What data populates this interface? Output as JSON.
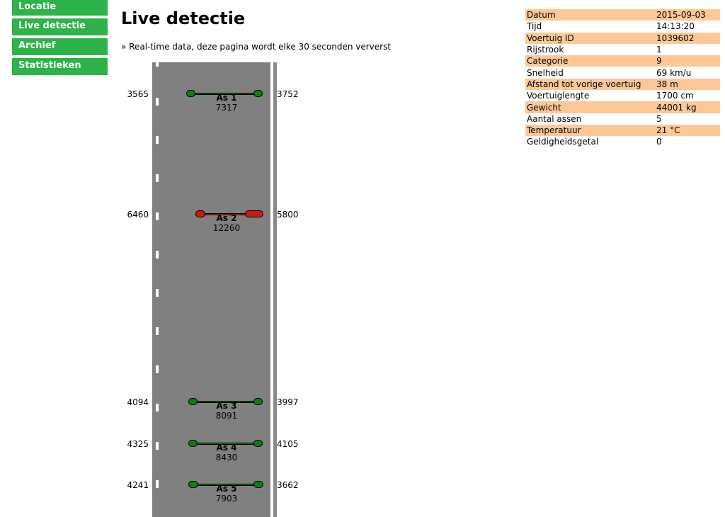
{
  "nav": [
    {
      "label": "Locatie"
    },
    {
      "label": "Live detectie"
    },
    {
      "label": "Archief"
    },
    {
      "label": "Statistieken"
    }
  ],
  "title": "Live detectie",
  "subtitle": "» Real-time data, deze pagina wordt elke 30 seconden ververst",
  "info": [
    {
      "key": "Datum",
      "value": "2015-09-03"
    },
    {
      "key": "Tijd",
      "value": "14:13:20"
    },
    {
      "key": "Voertuig ID",
      "value": "1039602"
    },
    {
      "key": "Rijstrook",
      "value": "1"
    },
    {
      "key": "Categorie",
      "value": "9"
    },
    {
      "key": "Snelheid",
      "value": "69 km/u"
    },
    {
      "key": "Afstand tot vorige voertuig",
      "value": "38 m"
    },
    {
      "key": "Voertuiglengte",
      "value": "1700 cm"
    },
    {
      "key": "Gewicht",
      "value": "44001 kg"
    },
    {
      "key": "Aantal assen",
      "value": "5"
    },
    {
      "key": "Temperatuur",
      "value": "21 °C"
    },
    {
      "key": "Geldigheidsgetal",
      "value": "0"
    }
  ],
  "axles": [
    {
      "label": "As 1",
      "weight": "7317",
      "left_wheel": "3565",
      "right_wheel": "3752",
      "status": "ok"
    },
    {
      "label": "As 2",
      "weight": "12260",
      "left_wheel": "6460",
      "right_wheel": "5800",
      "status": "overload"
    },
    {
      "label": "As 3",
      "weight": "8091",
      "left_wheel": "4094",
      "right_wheel": "3997",
      "status": "ok"
    },
    {
      "label": "As 4",
      "weight": "8430",
      "left_wheel": "4325",
      "right_wheel": "4105",
      "status": "ok"
    },
    {
      "label": "As 5",
      "weight": "7903",
      "left_wheel": "4241",
      "right_wheel": "3662",
      "status": "ok"
    }
  ],
  "colors": {
    "ok_wheel": "#0f7a17",
    "ok_bar": "#0f7a17",
    "overload_wheel": "#cc1a10",
    "overload_bar": "#cc1a10",
    "nav": "#2db34a",
    "row_highlight": "#fec896"
  }
}
